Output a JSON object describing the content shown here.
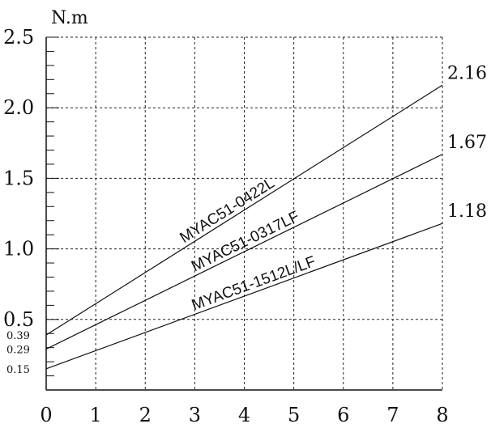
{
  "chart_data": {
    "type": "line",
    "title": "",
    "xlabel": "",
    "ylabel": "N.m",
    "xlim": [
      0,
      8
    ],
    "ylim": [
      0,
      2.5
    ],
    "x_ticks": [
      "0",
      "1",
      "2",
      "3",
      "4",
      "5",
      "6",
      "7",
      "8"
    ],
    "y_ticks": [
      {
        "value": 0.5,
        "label": "0.5"
      },
      {
        "value": 1.0,
        "label": "1.0"
      },
      {
        "value": 1.5,
        "label": "1.5"
      },
      {
        "value": 2.0,
        "label": "2.0"
      },
      {
        "value": 2.5,
        "label": "2.5"
      }
    ],
    "y_minor_ticks": [
      {
        "value": 0.39,
        "label": "0.39"
      },
      {
        "value": 0.29,
        "label": "0.29"
      },
      {
        "value": 0.15,
        "label": "0.15"
      }
    ],
    "grid": true,
    "series": [
      {
        "name": "MYAC51-0422L",
        "x": [
          0,
          8
        ],
        "y": [
          0.39,
          2.16
        ],
        "end_label": "2.16"
      },
      {
        "name": "MYAC51-0317LF",
        "x": [
          0,
          8
        ],
        "y": [
          0.29,
          1.67
        ],
        "end_label": "1.67"
      },
      {
        "name": "MYAC51-1512L/LF",
        "x": [
          0,
          8
        ],
        "y": [
          0.15,
          1.18
        ],
        "end_label": "1.18"
      }
    ]
  }
}
